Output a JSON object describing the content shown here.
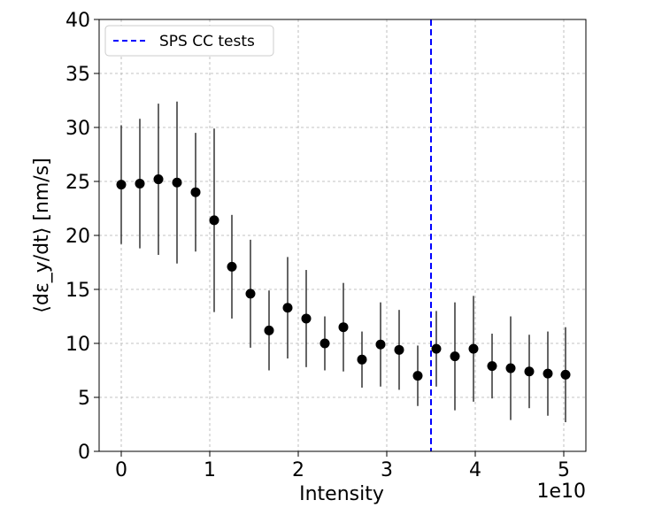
{
  "chart_data": {
    "type": "scatter",
    "title": "",
    "xlabel": "Intensity",
    "ylabel": "⟨dε_y/dt⟩ [nm/s]",
    "x_multiplier_label": "1e10",
    "xlim": [
      -0.25,
      5.25
    ],
    "ylim": [
      0,
      40
    ],
    "x_ticks": [
      0,
      1,
      2,
      3,
      4,
      5
    ],
    "y_ticks": [
      0,
      5,
      10,
      15,
      20,
      25,
      30,
      35,
      40
    ],
    "grid": true,
    "legend_position": "top-left",
    "series": [
      {
        "x": [
          0.0,
          0.21,
          0.42,
          0.63,
          0.84,
          1.05,
          1.25,
          1.46,
          1.67,
          1.88,
          2.09,
          2.3,
          2.51,
          2.72,
          2.93,
          3.14,
          3.35,
          3.56,
          3.77,
          3.98,
          4.19,
          4.4,
          4.61,
          4.82,
          5.02
        ],
        "y": [
          24.7,
          24.8,
          25.2,
          24.9,
          24.0,
          21.4,
          17.1,
          14.6,
          11.2,
          13.3,
          12.3,
          10.0,
          11.5,
          8.5,
          9.9,
          9.4,
          7.0,
          9.5,
          8.8,
          9.5,
          7.9,
          7.7,
          7.4,
          7.2,
          7.1
        ],
        "err": [
          5.5,
          6.0,
          7.0,
          7.5,
          5.5,
          8.5,
          4.8,
          5.0,
          3.7,
          4.7,
          4.5,
          2.5,
          4.1,
          2.6,
          3.9,
          3.7,
          2.8,
          3.5,
          5.0,
          4.9,
          3.0,
          4.8,
          3.4,
          3.9,
          4.4
        ],
        "color": "#000000"
      }
    ],
    "vlines": [
      {
        "name": "SPS CC tests",
        "x": 3.5,
        "color": "#0000ff",
        "style": "dashed"
      }
    ],
    "legend": [
      "SPS CC tests"
    ]
  }
}
